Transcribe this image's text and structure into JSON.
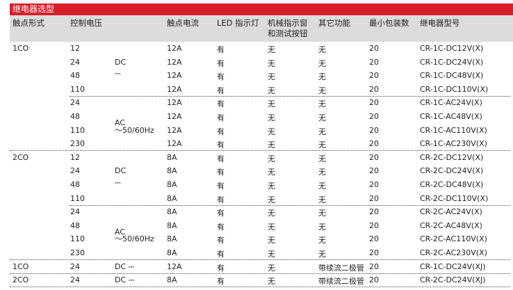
{
  "title": "继电器选型",
  "headers": [
    "触点形式",
    "控制电压",
    "触点电流",
    "LED 指示灯",
    "机械指示窗\n和测试按钮",
    "其它功能",
    "最小包装数",
    "继电器型号"
  ],
  "rows": [
    {
      "form": "1CO",
      "volt": "12",
      "type": "",
      "cur": "12A",
      "led": "有",
      "mech": "无",
      "other": "无",
      "pack": "20",
      "model": "CR-1C-DC12V(X)"
    },
    {
      "form": "",
      "volt": "24",
      "type": "DC",
      "cur": "12A",
      "led": "有",
      "mech": "无",
      "other": "无",
      "pack": "20",
      "model": "CR-1C-DC24V(X)"
    },
    {
      "form": "",
      "volt": "48",
      "type": "⎓",
      "cur": "12A",
      "led": "有",
      "mech": "无",
      "other": "无",
      "pack": "20",
      "model": "CR-1C-DC48V(X)"
    },
    {
      "form": "",
      "volt": "110",
      "type": "",
      "cur": "12A",
      "led": "有",
      "mech": "无",
      "other": "无",
      "pack": "20",
      "model": "CR-1C-DC110V(X)"
    },
    {
      "form": "",
      "volt": "24",
      "type": "",
      "cur": "12A",
      "led": "有",
      "mech": "无",
      "other": "无",
      "pack": "20",
      "model": "CR-1C-AC24V(X)"
    },
    {
      "form": "",
      "volt": "48",
      "type": "AC",
      "cur": "12A",
      "led": "有",
      "mech": "无",
      "other": "无",
      "pack": "20",
      "model": "CR-1C-AC48V(X)"
    },
    {
      "form": "",
      "volt": "110",
      "type": "～50/60Hz",
      "cur": "12A",
      "led": "有",
      "mech": "无",
      "other": "无",
      "pack": "20",
      "model": "CR-1C-AC110V(X)"
    },
    {
      "form": "",
      "volt": "230",
      "type": "",
      "cur": "12A",
      "led": "有",
      "mech": "无",
      "other": "无",
      "pack": "20",
      "model": "CR-1C-AC230V(X)"
    },
    {
      "form": "2CO",
      "volt": "12",
      "type": "",
      "cur": "8A",
      "led": "有",
      "mech": "无",
      "other": "无",
      "pack": "20",
      "model": "CR-2C-DC12V(X)"
    },
    {
      "form": "",
      "volt": "24",
      "type": "DC",
      "cur": "8A",
      "led": "有",
      "mech": "无",
      "other": "无",
      "pack": "20",
      "model": "CR-2C-DC24V(X)"
    },
    {
      "form": "",
      "volt": "48",
      "type": "⎓",
      "cur": "8A",
      "led": "有",
      "mech": "无",
      "other": "无",
      "pack": "20",
      "model": "CR-2C-DC48V(X)"
    },
    {
      "form": "",
      "volt": "110",
      "type": "",
      "cur": "8A",
      "led": "有",
      "mech": "无",
      "other": "无",
      "pack": "20",
      "model": "CR-2C-DC110V(X)"
    },
    {
      "form": "",
      "volt": "24",
      "type": "",
      "cur": "8A",
      "led": "有",
      "mech": "无",
      "other": "无",
      "pack": "20",
      "model": "CR-2C-AC24V(X)"
    },
    {
      "form": "",
      "volt": "48",
      "type": "AC",
      "cur": "8A",
      "led": "有",
      "mech": "无",
      "other": "无",
      "pack": "20",
      "model": "CR-2C-AC48V(X)"
    },
    {
      "form": "",
      "volt": "110",
      "type": "～50/60Hz",
      "cur": "8A",
      "led": "有",
      "mech": "无",
      "other": "无",
      "pack": "20",
      "model": "CR-2C-AC110V(X)"
    },
    {
      "form": "",
      "volt": "230",
      "type": "",
      "cur": "8A",
      "led": "有",
      "mech": "无",
      "other": "无",
      "pack": "20",
      "model": "CR-2C-AC230V(X)"
    },
    {
      "form": "1CO",
      "volt": "24",
      "type": "DC ⎓",
      "cur": "12A",
      "led": "有",
      "mech": "无",
      "other": "带续流二极管",
      "pack": "20",
      "model": "CR-1C-DC24V(XJ)"
    },
    {
      "form": "2CO",
      "volt": "24",
      "type": "DC ⎓",
      "cur": "8A",
      "led": "有",
      "mech": "无",
      "other": "带续流二极管",
      "pack": "20",
      "model": "CR-2C-DC24V(XJ)"
    }
  ]
}
